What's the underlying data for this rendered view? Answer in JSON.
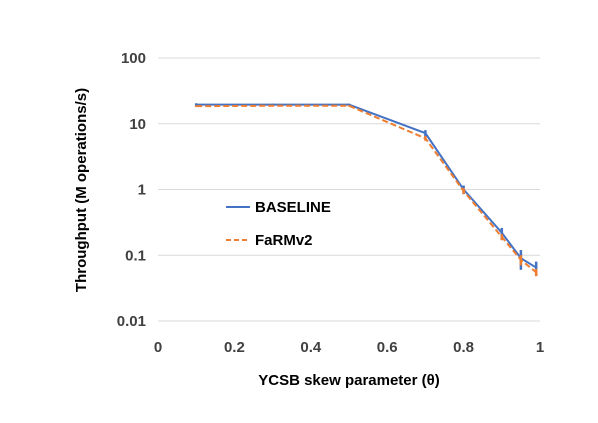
{
  "chart_data": {
    "type": "line",
    "title": "",
    "xlabel": "YCSB skew parameter (θ)",
    "ylabel": "Throughput (M operations/s)",
    "xlim": [
      0,
      1
    ],
    "ylim": [
      0.01,
      100
    ],
    "yscale": "log",
    "grid": "horizontal",
    "legend_position": "center-left",
    "x_ticks": [
      "0",
      "0.2",
      "0.4",
      "0.6",
      "0.8",
      "1"
    ],
    "y_ticks": [
      "0.01",
      "0.1",
      "1",
      "10",
      "100"
    ],
    "x": [
      0.1,
      0.3,
      0.5,
      0.7,
      0.8,
      0.9,
      0.95,
      0.99
    ],
    "series": [
      {
        "name": "BASELINE",
        "color": "#4472c4",
        "style": "solid",
        "values": [
          19.5,
          19.5,
          19.5,
          7.2,
          1.0,
          0.22,
          0.09,
          0.065
        ],
        "error_low": [
          18.5,
          18.8,
          18.8,
          6.4,
          0.85,
          0.17,
          0.06,
          0.05
        ],
        "error_high": [
          20.5,
          20.2,
          20.2,
          8.0,
          1.15,
          0.26,
          0.12,
          0.08
        ]
      },
      {
        "name": "FaRMv2",
        "color": "#ed7d31",
        "style": "dashed",
        "values": [
          18.5,
          18.8,
          18.8,
          6.0,
          0.95,
          0.19,
          0.085,
          0.055
        ],
        "error_low": [
          18.0,
          18.3,
          18.3,
          5.5,
          0.85,
          0.17,
          0.07,
          0.048
        ],
        "error_high": [
          19.0,
          19.3,
          19.3,
          6.5,
          1.05,
          0.21,
          0.1,
          0.062
        ]
      }
    ]
  }
}
